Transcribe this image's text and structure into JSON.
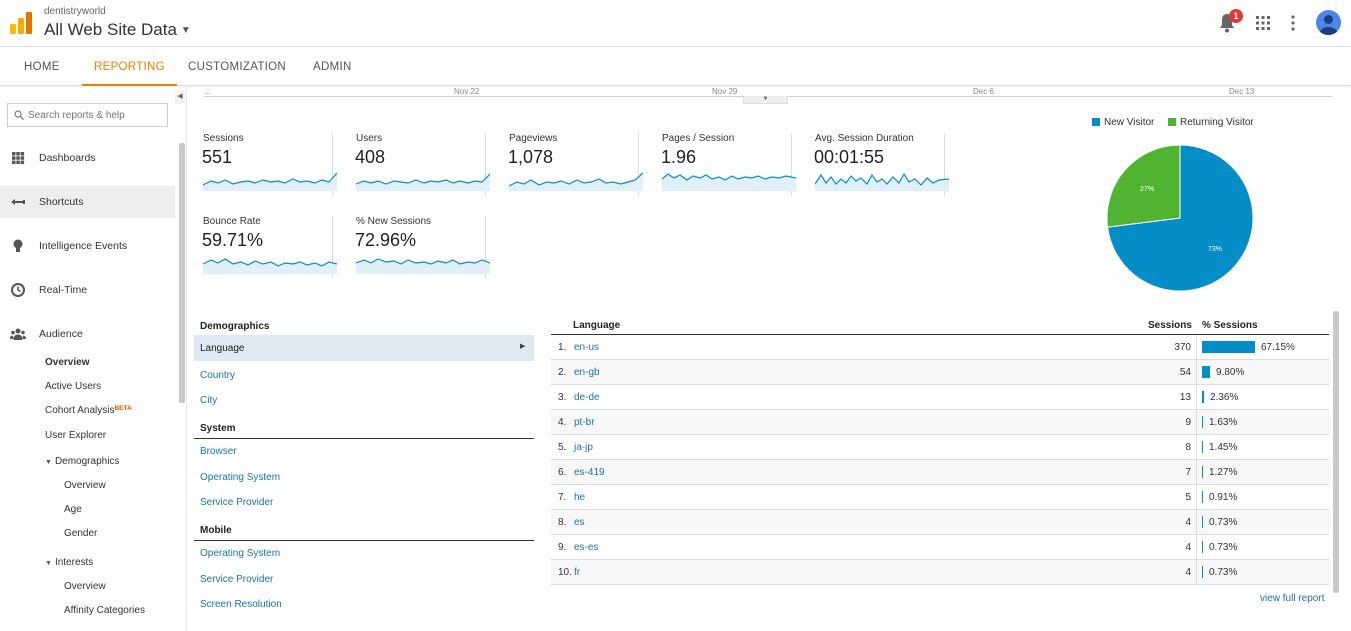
{
  "header": {
    "account": "dentistryworld",
    "property": "All Web Site Data",
    "notification_count": "1",
    "colors": {
      "brand_orange": "#f9ab00",
      "brand_orange_dark": "#e37400",
      "accent": "#f57c00",
      "link": "#1a73a8"
    }
  },
  "nav": {
    "tabs": [
      {
        "label": "HOME"
      },
      {
        "label": "REPORTING"
      },
      {
        "label": "CUSTOMIZATION"
      },
      {
        "label": "ADMIN"
      }
    ],
    "active": "REPORTING"
  },
  "sidebar": {
    "search_placeholder": "Search reports & help",
    "items": [
      {
        "label": "Dashboards",
        "icon": "grid-icon"
      },
      {
        "label": "Shortcuts",
        "icon": "shortcut-arrow-icon"
      },
      {
        "label": "Intelligence Events",
        "icon": "lightbulb-icon"
      },
      {
        "label": "Real-Time",
        "icon": "clock-icon"
      },
      {
        "label": "Audience",
        "icon": "people-icon"
      }
    ],
    "audience_sub": {
      "overview": "Overview",
      "active_users": "Active Users",
      "cohort": "Cohort Analysis",
      "beta": "BETA",
      "user_explorer": "User Explorer",
      "demographics": "Demographics",
      "demo_overview": "Overview",
      "age": "Age",
      "gender": "Gender",
      "interests": "Interests",
      "int_overview": "Overview",
      "affinity": "Affinity Categories"
    }
  },
  "timeline": {
    "dates": [
      "...",
      "Nov 22",
      "Nov 29",
      "Dec 6",
      "Dec 13"
    ]
  },
  "metrics": [
    {
      "name": "Sessions",
      "value": "551"
    },
    {
      "name": "Users",
      "value": "408"
    },
    {
      "name": "Pageviews",
      "value": "1,078"
    },
    {
      "name": "Pages / Session",
      "value": "1.96"
    },
    {
      "name": "Avg. Session Duration",
      "value": "00:01:55"
    },
    {
      "name": "Bounce Rate",
      "value": "59.71%"
    },
    {
      "name": "% New Sessions",
      "value": "72.96%"
    }
  ],
  "pie": {
    "legend": [
      "New Visitor",
      "Returning Visitor"
    ],
    "colors": [
      "#058dc7",
      "#50b432"
    ],
    "values": [
      73,
      27
    ],
    "labels": [
      "73%",
      "27%"
    ]
  },
  "dimensions": {
    "demographics_header": "Demographics",
    "demographics": [
      "Language",
      "Country",
      "City"
    ],
    "system_header": "System",
    "system": [
      "Browser",
      "Operating System",
      "Service Provider"
    ],
    "mobile_header": "Mobile",
    "mobile": [
      "Operating System",
      "Service Provider",
      "Screen Resolution"
    ]
  },
  "table": {
    "col_language": "Language",
    "col_sessions": "Sessions",
    "col_pct": "% Sessions",
    "rows": [
      {
        "idx": "1.",
        "lang": "en-us",
        "sessions": "370",
        "pct": "67.15%",
        "share": 0.6715
      },
      {
        "idx": "2.",
        "lang": "en-gb",
        "sessions": "54",
        "pct": "9.80%",
        "share": 0.098
      },
      {
        "idx": "3.",
        "lang": "de-de",
        "sessions": "13",
        "pct": "2.36%",
        "share": 0.0236
      },
      {
        "idx": "4.",
        "lang": "pt-br",
        "sessions": "9",
        "pct": "1.63%",
        "share": 0.0163
      },
      {
        "idx": "5.",
        "lang": "ja-jp",
        "sessions": "8",
        "pct": "1.45%",
        "share": 0.0145
      },
      {
        "idx": "6.",
        "lang": "es-419",
        "sessions": "7",
        "pct": "1.27%",
        "share": 0.0127
      },
      {
        "idx": "7.",
        "lang": "he",
        "sessions": "5",
        "pct": "0.91%",
        "share": 0.0091
      },
      {
        "idx": "8.",
        "lang": "es",
        "sessions": "4",
        "pct": "0.73%",
        "share": 0.0073
      },
      {
        "idx": "9.",
        "lang": "es-es",
        "sessions": "4",
        "pct": "0.73%",
        "share": 0.0073
      },
      {
        "idx": "10.",
        "lang": "fr",
        "sessions": "4",
        "pct": "0.73%",
        "share": 0.0073
      }
    ],
    "view_full": "view full report"
  }
}
